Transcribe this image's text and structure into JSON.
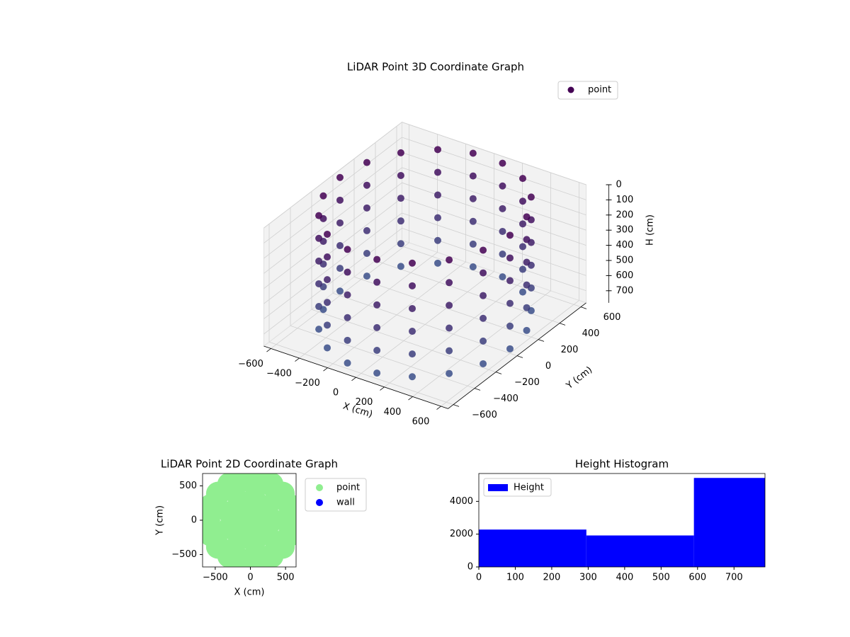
{
  "chart_data": [
    {
      "type": "scatter3d",
      "title": "LiDAR Point 3D Coordinate Graph",
      "xlabel": "X (cm)",
      "ylabel": "Y (cm)",
      "zlabel": "H (cm)",
      "xlim": [
        -650,
        650
      ],
      "ylim": [
        -650,
        650
      ],
      "zlim": [
        780,
        0
      ],
      "xticks": [
        {
          "value": -600,
          "label": "−600"
        },
        {
          "value": -400,
          "label": "−400"
        },
        {
          "value": -200,
          "label": "−200"
        },
        0,
        200,
        400,
        600
      ],
      "yticks": [
        {
          "value": -600,
          "label": "−600"
        },
        {
          "value": -400,
          "label": "−400"
        },
        {
          "value": -200,
          "label": "−200"
        },
        0,
        200,
        400,
        600
      ],
      "zticks": [
        0,
        100,
        200,
        300,
        400,
        500,
        600,
        700
      ],
      "legend": "upper right",
      "series": [
        {
          "name": "point",
          "x": [
            600,
            564,
            460,
            300,
            104,
            -104,
            -300,
            -460,
            -564,
            -600,
            -564,
            -460,
            -300,
            -104,
            104,
            300,
            460,
            564,
            600,
            564,
            460,
            300,
            104,
            -104,
            -300,
            -460,
            -564,
            -600,
            -564,
            -460,
            -300,
            -104,
            104,
            300,
            460,
            564,
            600,
            564,
            460,
            300,
            104,
            -104,
            -300,
            -460,
            -564,
            -600,
            -564,
            -460,
            -300,
            -104,
            104,
            300,
            460,
            564,
            600,
            564,
            460,
            300,
            104,
            -104,
            -300,
            -460,
            -564,
            -600,
            -564,
            -460,
            -300,
            -104,
            104,
            300,
            460,
            564,
            600,
            564,
            460,
            300,
            104,
            -104,
            -300,
            -460,
            -564,
            -600,
            -564,
            -460,
            -300,
            -104,
            104,
            300,
            460,
            564,
            600,
            564,
            460,
            300,
            104,
            -104,
            -300,
            -460,
            -564,
            -600,
            -564,
            -460,
            -300,
            -104,
            104,
            300,
            460,
            564
          ],
          "y": [
            0,
            205,
            386,
            520,
            591,
            591,
            520,
            386,
            205,
            0,
            -205,
            -386,
            -520,
            -591,
            -591,
            -520,
            -386,
            -205,
            0,
            205,
            386,
            520,
            591,
            591,
            520,
            386,
            205,
            0,
            -205,
            -386,
            -520,
            -591,
            -591,
            -520,
            -386,
            -205,
            0,
            205,
            386,
            520,
            591,
            591,
            520,
            386,
            205,
            0,
            -205,
            -386,
            -520,
            -591,
            -591,
            -520,
            -386,
            -205,
            0,
            205,
            386,
            520,
            591,
            591,
            520,
            386,
            205,
            0,
            -205,
            -386,
            -520,
            -591,
            -591,
            -520,
            -386,
            -205,
            0,
            205,
            386,
            520,
            591,
            591,
            520,
            386,
            205,
            0,
            -205,
            -386,
            -520,
            -591,
            -591,
            -520,
            -386,
            -205,
            0,
            205,
            386,
            520,
            591,
            591,
            520,
            386,
            205,
            0,
            -205,
            -386,
            -520,
            -591,
            -591,
            -520,
            -386,
            -205
          ],
          "z": [
            0,
            0,
            0,
            0,
            0,
            0,
            0,
            0,
            0,
            0,
            0,
            0,
            0,
            0,
            0,
            0,
            0,
            0,
            150,
            150,
            150,
            150,
            150,
            150,
            150,
            150,
            150,
            150,
            150,
            150,
            150,
            150,
            150,
            150,
            150,
            150,
            300,
            300,
            300,
            300,
            300,
            300,
            300,
            300,
            300,
            300,
            300,
            300,
            300,
            300,
            300,
            300,
            300,
            300,
            450,
            450,
            450,
            450,
            450,
            450,
            450,
            450,
            450,
            450,
            450,
            450,
            450,
            450,
            450,
            450,
            450,
            450,
            600,
            600,
            600,
            600,
            600,
            600,
            600,
            600,
            600,
            600,
            600,
            600,
            600,
            600,
            600,
            600,
            600,
            600,
            750,
            750,
            750,
            750,
            750,
            750,
            750,
            750,
            750,
            750,
            750,
            750,
            750,
            750,
            750,
            750,
            750,
            750
          ]
        }
      ]
    },
    {
      "type": "scatter",
      "title": "LiDAR Point 2D Coordinate Graph",
      "xlabel": "X (cm)",
      "ylabel": "Y (cm)",
      "xlim": [
        -680,
        650
      ],
      "ylim": [
        -680,
        680
      ],
      "xticks": [
        {
          "value": -500,
          "label": "−500"
        },
        0,
        500
      ],
      "yticks": [
        {
          "value": -500,
          "label": "−500"
        },
        0,
        500
      ],
      "legend": "outside upper right",
      "series": [
        {
          "name": "point",
          "color": "#90ee90",
          "x": [
            600,
            564,
            460,
            300,
            104,
            -104,
            -300,
            -460,
            -564,
            -600,
            -564,
            -460,
            -300,
            -104,
            104,
            300,
            460,
            564,
            300,
            230,
            52,
            -150,
            -282,
            -282,
            -150,
            52,
            230,
            0
          ],
          "y": [
            0,
            205,
            386,
            520,
            591,
            591,
            520,
            386,
            205,
            0,
            -205,
            -386,
            -520,
            -591,
            -591,
            -520,
            -386,
            -205,
            0,
            193,
            295,
            260,
            103,
            -103,
            -260,
            -295,
            -193,
            0
          ]
        },
        {
          "name": "wall",
          "color": "#0000ff",
          "x": [],
          "y": []
        }
      ]
    },
    {
      "type": "histogram",
      "title": "Height Histogram",
      "name": "Height",
      "color": "#0000ff",
      "bins": [
        0,
        295,
        590,
        785
      ],
      "values": [
        2280,
        1920,
        5430
      ],
      "xlim": [
        0,
        785
      ],
      "ylim": [
        0,
        5700
      ],
      "xticks": [
        0,
        100,
        200,
        300,
        400,
        500,
        600,
        700
      ],
      "yticks": [
        0,
        2000,
        4000
      ],
      "legend": "upper left"
    }
  ]
}
